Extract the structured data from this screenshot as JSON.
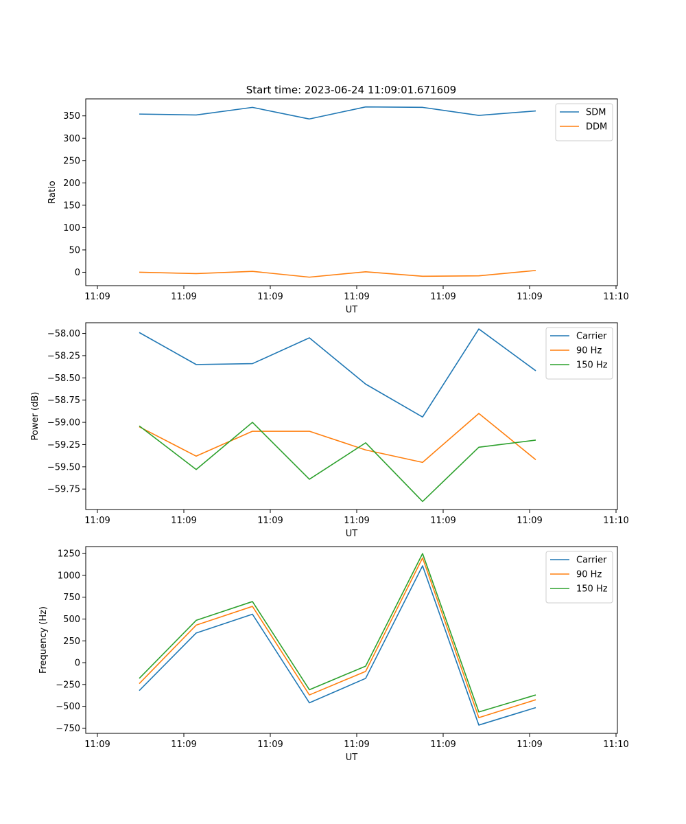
{
  "figure_title": "Start time: 2023-06-24 11:09:01.671609",
  "chart_data": [
    {
      "type": "line",
      "ylabel": "Ratio",
      "xlabel": "UT",
      "x_tick_labels": [
        "11:09",
        "11:09",
        "11:09",
        "11:09",
        "11:09",
        "11:09",
        "11:10"
      ],
      "y_ticks": [
        0,
        50,
        100,
        150,
        200,
        250,
        300,
        350
      ],
      "y_tick_labels": [
        "0",
        "50",
        "100",
        "150",
        "200",
        "250",
        "300",
        "350"
      ],
      "ylim": [
        -30,
        388
      ],
      "legend_position": "top-right",
      "series": [
        {
          "name": "SDM",
          "color": "#1f77b4",
          "values": [
            354,
            352,
            369,
            343,
            370,
            369,
            351,
            361
          ]
        },
        {
          "name": "DDM",
          "color": "#ff7f0e",
          "values": [
            0,
            -3,
            2,
            -11,
            1,
            -9,
            -8,
            4
          ]
        }
      ]
    },
    {
      "type": "line",
      "ylabel": "Power (dB)",
      "xlabel": "UT",
      "x_tick_labels": [
        "11:09",
        "11:09",
        "11:09",
        "11:09",
        "11:09",
        "11:09",
        "11:10"
      ],
      "y_ticks": [
        -58.0,
        -58.25,
        -58.5,
        -58.75,
        -59.0,
        -59.25,
        -59.5,
        -59.75
      ],
      "y_tick_labels": [
        "−58.00",
        "−58.25",
        "−58.50",
        "−58.75",
        "−59.00",
        "−59.25",
        "−59.50",
        "−59.75"
      ],
      "ylim": [
        -59.98,
        -57.88
      ],
      "legend_position": "top-right",
      "series": [
        {
          "name": "Carrier",
          "color": "#1f77b4",
          "values": [
            -57.99,
            -58.35,
            -58.34,
            -58.05,
            -58.57,
            -58.94,
            -57.95,
            -58.42
          ]
        },
        {
          "name": "90 Hz",
          "color": "#ff7f0e",
          "values": [
            -59.05,
            -59.38,
            -59.1,
            -59.1,
            -59.31,
            -59.45,
            -58.9,
            -59.42
          ]
        },
        {
          "name": "150 Hz",
          "color": "#2ca02c",
          "values": [
            -59.04,
            -59.53,
            -59.0,
            -59.64,
            -59.23,
            -59.89,
            -59.28,
            -59.2
          ]
        }
      ]
    },
    {
      "type": "line",
      "ylabel": "Frequency (Hz)",
      "xlabel": "UT",
      "x_tick_labels": [
        "11:09",
        "11:09",
        "11:09",
        "11:09",
        "11:09",
        "11:09",
        "11:10"
      ],
      "y_ticks": [
        1250,
        1000,
        750,
        500,
        250,
        0,
        -250,
        -500,
        -750
      ],
      "y_tick_labels": [
        "1250",
        "1000",
        "750",
        "500",
        "250",
        "0",
        "−250",
        "−500",
        "−750"
      ],
      "ylim": [
        -810,
        1330
      ],
      "legend_position": "top-right",
      "series": [
        {
          "name": "Carrier",
          "color": "#1f77b4",
          "values": [
            -320,
            340,
            555,
            -460,
            -180,
            1110,
            -715,
            -515
          ]
        },
        {
          "name": "90 Hz",
          "color": "#ff7f0e",
          "values": [
            -240,
            430,
            645,
            -370,
            -100,
            1200,
            -630,
            -425
          ]
        },
        {
          "name": "150 Hz",
          "color": "#2ca02c",
          "values": [
            -180,
            485,
            700,
            -310,
            -40,
            1250,
            -565,
            -370
          ]
        }
      ]
    }
  ]
}
